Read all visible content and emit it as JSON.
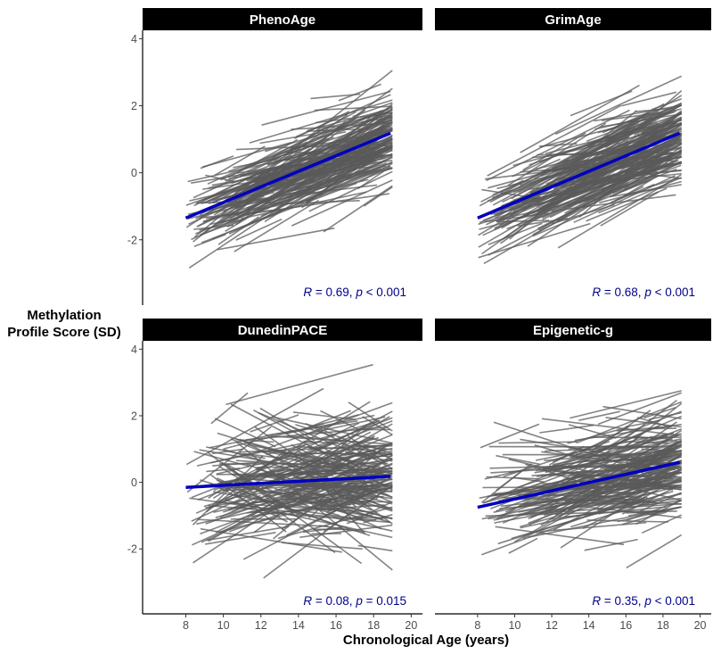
{
  "figure": {
    "y_axis_title_line1": "Methylation",
    "y_axis_title_line2": "Profile Score (SD)",
    "x_axis_title": "Chronological Age (years)"
  },
  "colors": {
    "individual_lines": "#595959",
    "regression_line": "#0000bf",
    "strip_background": "#000000",
    "strip_text": "#ffffff",
    "stat_text": "#00008b"
  },
  "chart_data": [
    {
      "type": "line",
      "title": "PhenoAge",
      "xlabel": "Chronological Age (years)",
      "ylabel": "Methylation Profile Score (SD)",
      "xlim": [
        5.7,
        20.6
      ],
      "ylim": [
        -3.95,
        4.25
      ],
      "x_ticks": [
        "8",
        "10",
        "12",
        "14",
        "16",
        "18",
        "20"
      ],
      "y_ticks": [
        "-2",
        "0",
        "2",
        "4"
      ],
      "regression": {
        "x": [
          8,
          18.9
        ],
        "y": [
          -1.35,
          1.18
        ]
      },
      "stat": {
        "r_label": "R",
        "r_value": " = 0.69, ",
        "p_label": "p",
        "p_value": " < 0.001"
      },
      "individuals": {
        "count": 300,
        "x_range": [
          8,
          19
        ],
        "mean_slope": 0.23,
        "mean_intercept_at_8": -1.35,
        "sd_between": 0.6,
        "sd_slope": 0.1
      }
    },
    {
      "type": "line",
      "title": "GrimAge",
      "xlabel": "Chronological Age (years)",
      "ylabel": "Methylation Profile Score (SD)",
      "xlim": [
        5.7,
        20.6
      ],
      "ylim": [
        -3.95,
        4.25
      ],
      "x_ticks": [
        "8",
        "10",
        "12",
        "14",
        "16",
        "18",
        "20"
      ],
      "y_ticks": [
        "-2",
        "0",
        "2",
        "4"
      ],
      "regression": {
        "x": [
          8,
          18.9
        ],
        "y": [
          -1.35,
          1.18
        ]
      },
      "stat": {
        "r_label": "R",
        "r_value": " = 0.68, ",
        "p_label": "p",
        "p_value": " < 0.001"
      },
      "individuals": {
        "count": 300,
        "x_range": [
          8,
          19
        ],
        "mean_slope": 0.23,
        "mean_intercept_at_8": -1.35,
        "sd_between": 0.6,
        "sd_slope": 0.1
      }
    },
    {
      "type": "line",
      "title": "DunedinPACE",
      "xlabel": "Chronological Age (years)",
      "ylabel": "Methylation Profile Score (SD)",
      "xlim": [
        5.7,
        20.6
      ],
      "ylim": [
        -3.95,
        4.25
      ],
      "x_ticks": [
        "8",
        "10",
        "12",
        "14",
        "16",
        "18",
        "20"
      ],
      "y_ticks": [
        "-2",
        "0",
        "2",
        "4"
      ],
      "regression": {
        "x": [
          8,
          18.9
        ],
        "y": [
          -0.15,
          0.18
        ]
      },
      "stat": {
        "r_label": "R",
        "r_value": " = 0.08, ",
        "p_label": "p",
        "p_value": " = 0.015"
      },
      "individuals": {
        "count": 300,
        "x_range": [
          8,
          19
        ],
        "mean_slope": 0.03,
        "mean_intercept_at_8": -0.15,
        "sd_between": 0.9,
        "sd_slope": 0.2
      }
    },
    {
      "type": "line",
      "title": "Epigenetic-g",
      "xlabel": "Chronological Age (years)",
      "ylabel": "Methylation Profile Score (SD)",
      "xlim": [
        5.7,
        20.6
      ],
      "ylim": [
        -3.95,
        4.25
      ],
      "x_ticks": [
        "8",
        "10",
        "12",
        "14",
        "16",
        "18",
        "20"
      ],
      "y_ticks": [
        "-2",
        "0",
        "2",
        "4"
      ],
      "regression": {
        "x": [
          8,
          18.9
        ],
        "y": [
          -0.75,
          0.6
        ]
      },
      "stat": {
        "r_label": "R",
        "r_value": " = 0.35, ",
        "p_label": "p",
        "p_value": " < 0.001"
      },
      "individuals": {
        "count": 300,
        "x_range": [
          8,
          19
        ],
        "mean_slope": 0.125,
        "mean_intercept_at_8": -0.75,
        "sd_between": 0.75,
        "sd_slope": 0.13
      }
    }
  ]
}
